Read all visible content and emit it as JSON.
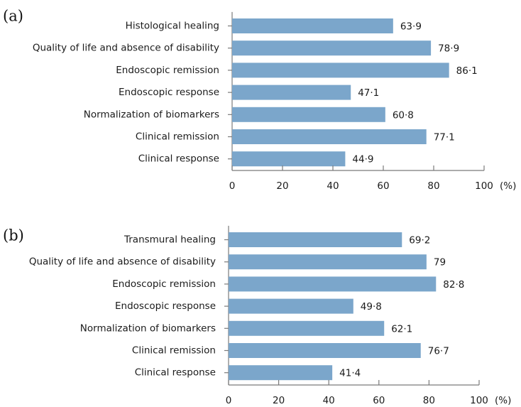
{
  "chart_data": [
    {
      "type": "bar",
      "orientation": "horizontal",
      "panel_label": "(a)",
      "categories": [
        "Histological healing",
        "Quality of life and absence of disability",
        "Endoscopic remission",
        "Endoscopic response",
        "Normalization of biomarkers",
        "Clinical remission",
        "Clinical response"
      ],
      "values": [
        63.9,
        78.9,
        86.1,
        47.1,
        60.8,
        77.1,
        44.9
      ],
      "value_labels": [
        "63·9",
        "78·9",
        "86·1",
        "47·1",
        "60·8",
        "77·1",
        "44·9"
      ],
      "xlim": [
        0,
        100
      ],
      "xticks": [
        "0",
        "20",
        "40",
        "60",
        "80",
        "100"
      ],
      "xunit": "(%)",
      "color": "#7ba6cb",
      "grid": false
    },
    {
      "type": "bar",
      "orientation": "horizontal",
      "panel_label": "(b)",
      "categories": [
        "Transmural healing",
        "Quality of life and absence of disability",
        "Endoscopic remission",
        "Endoscopic response",
        "Normalization of biomarkers",
        "Clinical remission",
        "Clinical response"
      ],
      "values": [
        69.2,
        79,
        82.8,
        49.8,
        62.1,
        76.7,
        41.4
      ],
      "value_labels": [
        "69·2",
        "79",
        "82·8",
        "49·8",
        "62·1",
        "76·7",
        "41·4"
      ],
      "xlim": [
        0,
        100
      ],
      "xticks": [
        "0",
        "20",
        "40",
        "60",
        "80",
        "100"
      ],
      "xunit": "(%)",
      "color": "#7ba6cb",
      "grid": false
    }
  ]
}
